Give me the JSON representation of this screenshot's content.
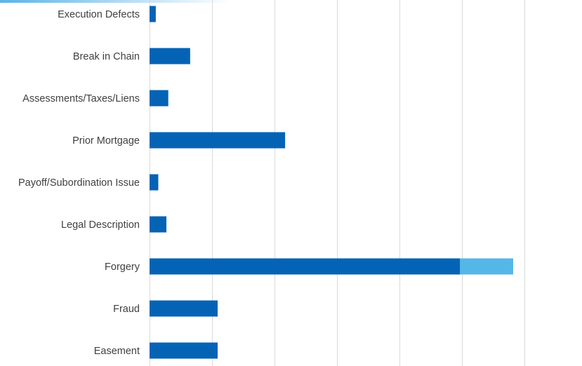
{
  "accent_gradient": [
    "#5bb4e8",
    "#ffffff"
  ],
  "chart_data": {
    "type": "bar",
    "orientation": "horizontal",
    "stacked": true,
    "categories": [
      "Execution Defects",
      "Break in Chain",
      "Assessments/Taxes/Liens",
      "Prior Mortgage",
      "Payoff/Subordination Issue",
      "Legal Description",
      "Forgery",
      "Fraud",
      "Easement"
    ],
    "series": [
      {
        "color": "#0563b5",
        "values": [
          0.1,
          0.65,
          0.3,
          2.17,
          0.14,
          0.27,
          4.97,
          1.09,
          1.09
        ]
      },
      {
        "color": "#55b6e8",
        "values": [
          0,
          0,
          0,
          0,
          0,
          0,
          0.85,
          0,
          0
        ]
      }
    ],
    "xlim": [
      0,
      6.8
    ],
    "grid": true,
    "gridline_color": "#d9d9d9",
    "xlabel": "",
    "ylabel": "",
    "title": ""
  }
}
